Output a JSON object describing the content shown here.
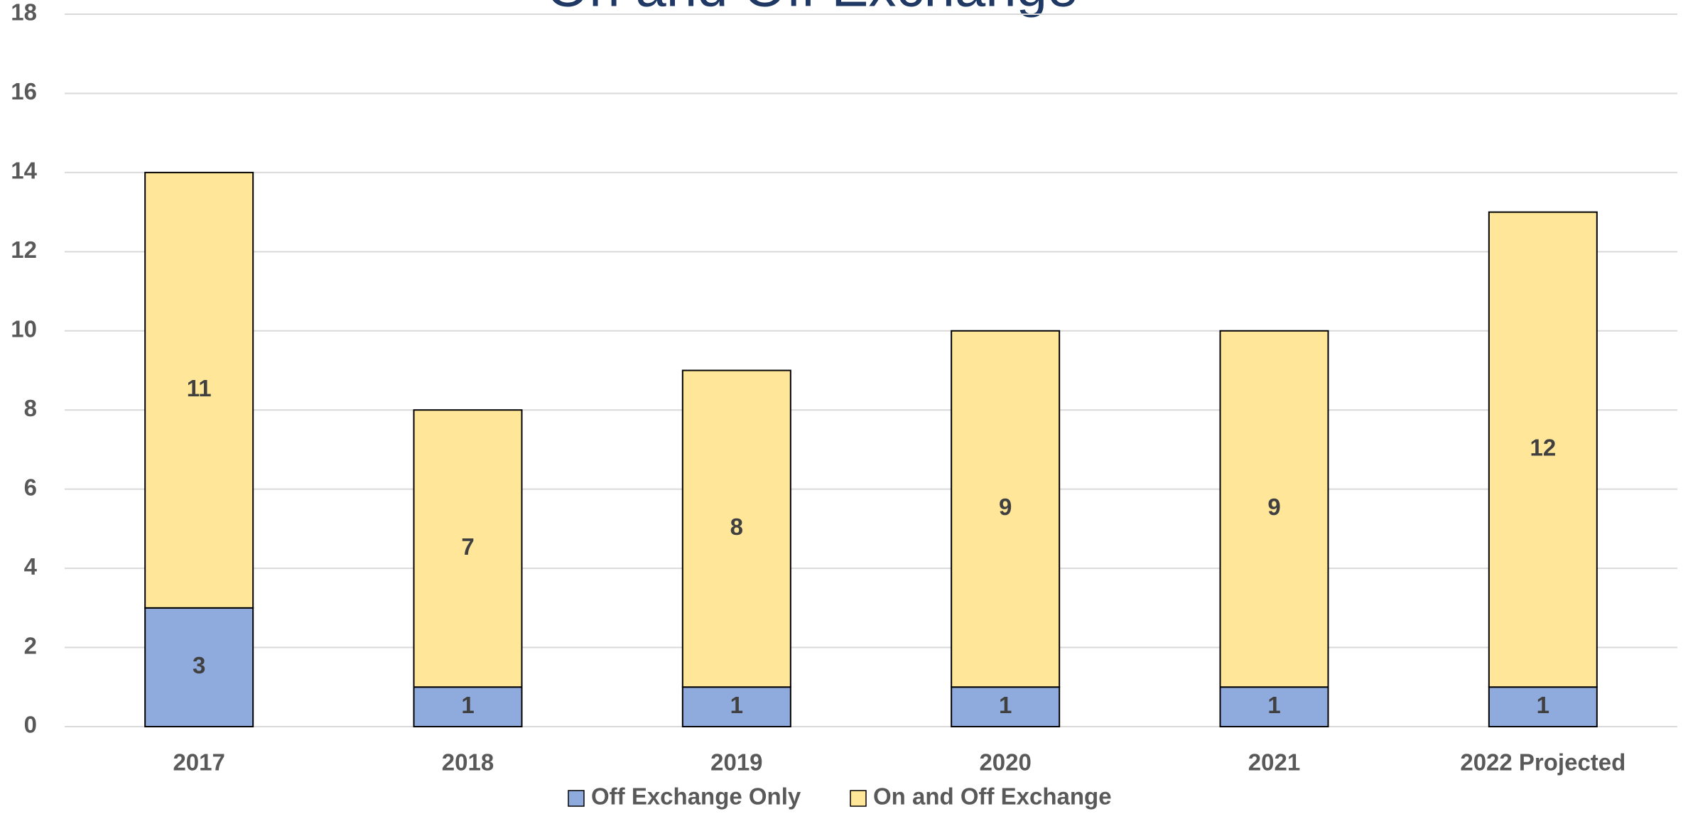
{
  "chart_data": {
    "type": "stacked_bar",
    "title": "On and Off Exchange",
    "categories": [
      "2017",
      "2018",
      "2019",
      "2020",
      "2021",
      "2022 Projected"
    ],
    "series": [
      {
        "name": "Off Exchange Only",
        "color": "#8faadc",
        "values": [
          3,
          1,
          1,
          1,
          1,
          1
        ]
      },
      {
        "name": "On and Off Exchange",
        "color": "#ffe699",
        "values": [
          11,
          7,
          8,
          9,
          9,
          12
        ]
      }
    ],
    "ylim": [
      0,
      18
    ],
    "yticks": [
      0,
      2,
      4,
      6,
      8,
      10,
      12,
      14,
      16,
      18
    ],
    "grid": true,
    "legend": "bottom"
  }
}
